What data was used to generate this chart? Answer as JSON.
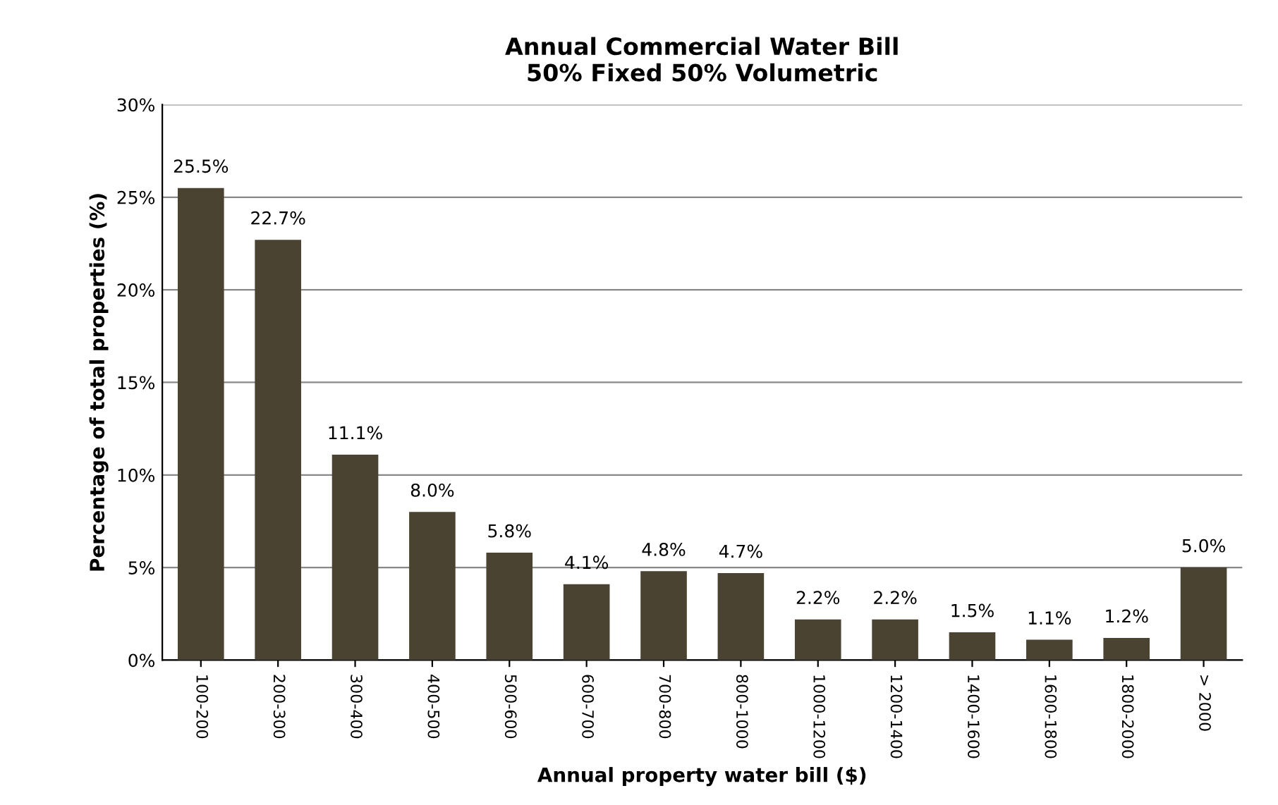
{
  "chart_data": {
    "type": "bar",
    "title": "Annual Commercial Water Bill\n50% Fixed 50% Volumetric",
    "xlabel": "Annual property water bill ($)",
    "ylabel": "Percentage of total properties (%)",
    "categories": [
      "100-200",
      "200-300",
      "300-400",
      "400-500",
      "500-600",
      "600-700",
      "700-800",
      "800-1000",
      "1000-1200",
      "1200-1400",
      "1400-1600",
      "1600-1800",
      "1800-2000",
      "> 2000"
    ],
    "values": [
      25.5,
      22.7,
      11.1,
      8.0,
      5.8,
      4.1,
      4.8,
      4.7,
      2.2,
      2.2,
      1.5,
      1.1,
      1.2,
      5.0
    ],
    "value_labels": [
      "25.5%",
      "22.7%",
      "11.1%",
      "8.0%",
      "5.8%",
      "4.1%",
      "4.8%",
      "4.7%",
      "2.2%",
      "2.2%",
      "1.5%",
      "1.1%",
      "1.2%",
      "5.0%"
    ],
    "color": "#4b4331",
    "ylim": [
      0,
      30
    ],
    "yticks": [
      {
        "value": 0,
        "label": "0%"
      },
      {
        "value": 5,
        "label": "5%"
      },
      {
        "value": 10,
        "label": "10%"
      },
      {
        "value": 15,
        "label": "15%"
      },
      {
        "value": 20,
        "label": "20%"
      },
      {
        "value": 25,
        "label": "25%"
      },
      {
        "value": 30,
        "label": "30%"
      }
    ],
    "grid": "y",
    "legend": false
  }
}
